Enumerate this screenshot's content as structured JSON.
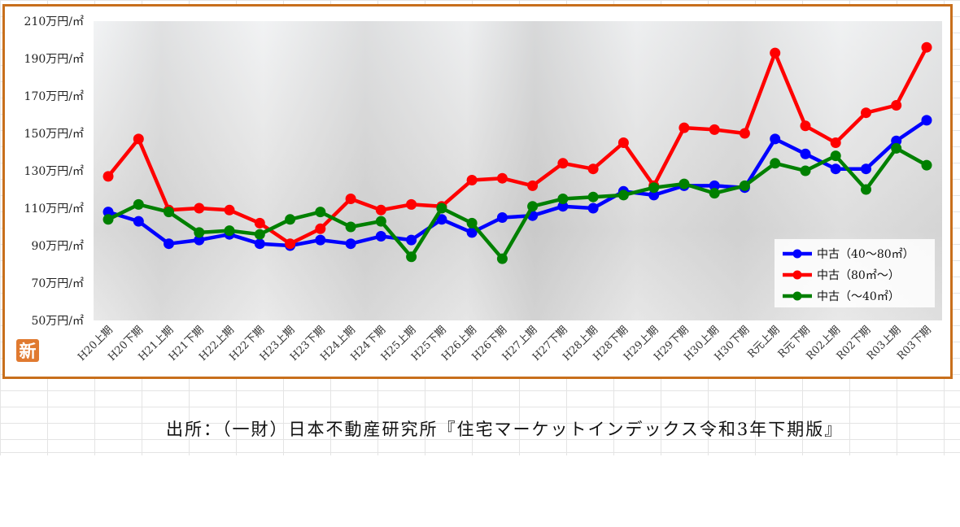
{
  "badge": "新",
  "source": "出所：（一財）日本不動産研究所『住宅マーケットインデックス令和3年下期版』",
  "chart_data": {
    "type": "line",
    "y_unit": "万円/㎡",
    "ylim": [
      50,
      210
    ],
    "yticks": [
      50,
      70,
      90,
      110,
      130,
      150,
      170,
      190,
      210
    ],
    "grid": false,
    "legend_position": "bottom-right",
    "categories": [
      "H20上期",
      "H20下期",
      "H21上期",
      "H21下期",
      "H22上期",
      "H22下期",
      "H23上期",
      "H23下期",
      "H24上期",
      "H24下期",
      "H25上期",
      "H25下期",
      "H26上期",
      "H26下期",
      "H27上期",
      "H27下期",
      "H28上期",
      "H28下期",
      "H29上期",
      "H29下期",
      "H30上期",
      "H30下期",
      "R元上期",
      "R元下期",
      "R02上期",
      "R02下期",
      "R03上期",
      "R03下期"
    ],
    "series": [
      {
        "name": "中古（40～80㎡）",
        "color": "#0000ff",
        "values": [
          108,
          103,
          91,
          93,
          96,
          91,
          90,
          93,
          91,
          95,
          93,
          104,
          97,
          105,
          106,
          111,
          110,
          119,
          117,
          122,
          122,
          121,
          147,
          139,
          131,
          131,
          146,
          157
        ]
      },
      {
        "name": "中古（80㎡～）",
        "color": "#ff0000",
        "values": [
          127,
          147,
          109,
          110,
          109,
          102,
          91,
          99,
          115,
          109,
          112,
          111,
          125,
          126,
          122,
          134,
          131,
          145,
          122,
          153,
          152,
          150,
          193,
          154,
          145,
          161,
          165,
          196
        ]
      },
      {
        "name": "中古（～40㎡）",
        "color": "#008000",
        "values": [
          104,
          112,
          108,
          97,
          98,
          96,
          104,
          108,
          100,
          103,
          84,
          110,
          102,
          83,
          111,
          115,
          116,
          117,
          121,
          123,
          118,
          122,
          134,
          130,
          138,
          120,
          142,
          133
        ]
      }
    ]
  }
}
